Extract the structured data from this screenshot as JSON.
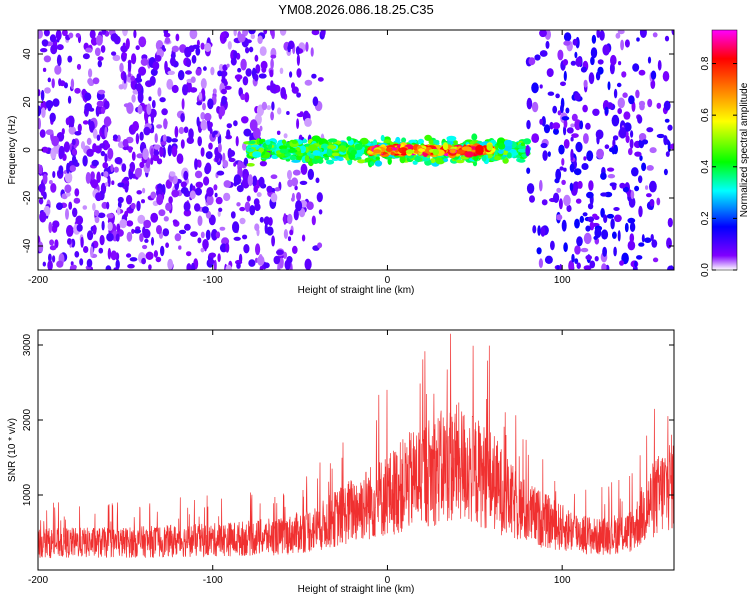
{
  "title": "YM08.2026.086.18.25.C35",
  "chart_data": [
    {
      "type": "heatmap",
      "title": "YM08.2026.086.18.25.C35",
      "xlabel": "Height of straight line (km)",
      "ylabel": "Frequency (Hz)",
      "xlim": [
        -200,
        164
      ],
      "ylim": [
        -50,
        50
      ],
      "x_ticks": [
        "-200",
        "-100",
        "0",
        "100"
      ],
      "y_ticks": [
        "-40",
        "-20",
        "0",
        "20",
        "40"
      ],
      "colorbar": {
        "label": "Normalized spectral amplitude",
        "range": [
          0.0,
          0.93
        ],
        "ticks": [
          "0.0",
          "0.2",
          "0.4",
          "0.6",
          "0.8"
        ],
        "colors": [
          "#ffffff",
          "#8000ff",
          "#0000ff",
          "#00ffff",
          "#00ff00",
          "#ffff00",
          "#ff8000",
          "#ff0000",
          "#ff00ff"
        ]
      },
      "features": [
        {
          "name": "broadband noise",
          "x_range": [
            -200,
            -35
          ],
          "freq_range": [
            -50,
            50
          ],
          "amplitude": 0.1
        },
        {
          "name": "signal band",
          "x_range": [
            -80,
            80
          ],
          "freq_center": 0,
          "freq_halfwidth": 3,
          "amplitude": 0.5
        },
        {
          "name": "signal peak",
          "x_range": [
            -10,
            60
          ],
          "freq_center": 0,
          "freq_halfwidth": 1,
          "amplitude": 0.9
        },
        {
          "name": "right noise patch",
          "x_range": [
            80,
            164
          ],
          "freq_range": [
            -50,
            50
          ],
          "amplitude": 0.15
        }
      ]
    },
    {
      "type": "line",
      "xlabel": "Height of straight line (km)",
      "ylabel": "SNR (10 * v/v)",
      "xlim": [
        -200,
        164
      ],
      "ylim": [
        0,
        3200
      ],
      "x_ticks": [
        "-200",
        "-100",
        "0",
        "100"
      ],
      "y_ticks": [
        "1000",
        "2000",
        "3000"
      ],
      "series": [
        {
          "name": "SNR",
          "color": "#f03030",
          "envelope": {
            "x": [
              -200,
              -150,
              -100,
              -60,
              -40,
              -20,
              0,
              20,
              40,
              60,
              70,
              80,
              100,
              120,
              140,
              150,
              164
            ],
            "y": [
              450,
              460,
              500,
              560,
              700,
              1000,
              1250,
              1600,
              1800,
              1500,
              1150,
              950,
              700,
              550,
              650,
              1100,
              1500
            ]
          },
          "peak_max": 3150
        }
      ]
    }
  ]
}
